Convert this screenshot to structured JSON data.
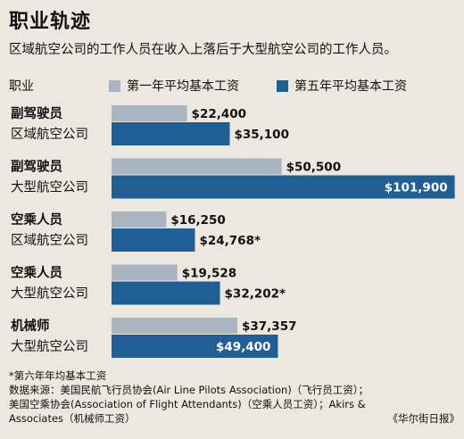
{
  "header": {
    "title": "职业轨迹",
    "subtitle": "区域航空公司的工作人员在收入上落后于大型航空公司的工作人员。",
    "column_label": "职业"
  },
  "chart_data": {
    "type": "bar",
    "orientation": "horizontal",
    "categories": [
      [
        "副驾驶员",
        "区域航空公司"
      ],
      [
        "副驾驶员",
        "大型航空公司"
      ],
      [
        "空乘人员",
        "区域航空公司"
      ],
      [
        "空乘人员",
        "大型航空公司"
      ],
      [
        "机械师",
        "大型航空公司"
      ]
    ],
    "series": [
      {
        "name": "第一年平均基本工资",
        "color": "#a9b5c0",
        "values": [
          22400,
          50500,
          16250,
          19528,
          37357
        ],
        "labels": [
          "$22,400",
          "$50,500",
          "$16,250",
          "$19,528",
          "$37,357"
        ]
      },
      {
        "name": "第五年平均基本工资",
        "color": "#1f5f96",
        "values": [
          35100,
          101900,
          24768,
          32202,
          49400
        ],
        "labels": [
          "$35,100",
          "$101,900",
          "$24,768*",
          "$32,202*",
          "$49,400"
        ]
      }
    ],
    "xlim": [
      0,
      102000
    ],
    "grid": false,
    "legend": "top"
  },
  "notes": {
    "footnote": "*第六年年均基本工资",
    "source_line1": "数据来源：美国民航飞行员协会(Air Line Pilots Association)（飞行员工资）；",
    "source_line2": "美国空乘协会(Association of Flight Attendants)（空乘人员工资）；Akirs &",
    "source_line3": "Associates（机械师工资）",
    "publisher": "《华尔街日报》"
  }
}
